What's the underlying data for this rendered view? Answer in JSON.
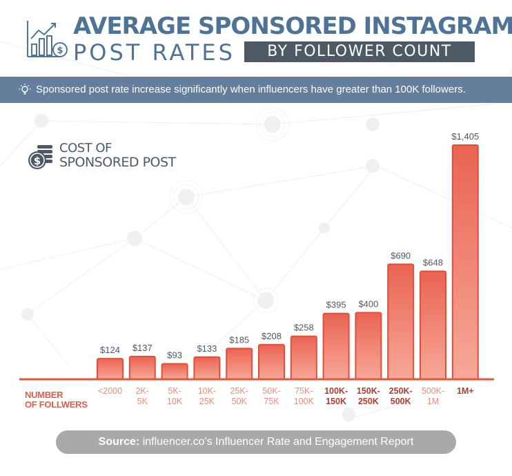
{
  "header": {
    "title_line1": "AVERAGE SPONSORED INSTAGRAM",
    "title_line2": "POST RATES",
    "title_badge": "BY FOLLOWER COUNT"
  },
  "banner": {
    "text": "Sponsored post rate increase significantly when influencers have greater than 100K followers.",
    "icon": "lightbulb-icon"
  },
  "cost_label": {
    "line1": "COST OF",
    "line2": "SPONSORED POST",
    "icon": "coins-dollar-icon"
  },
  "xaxis_title": {
    "line1": "NUMBER",
    "line2": "OF FOLLWERS"
  },
  "source": {
    "label": "Source:",
    "text": " influencer.co's Influencer Rate and Engagement Report"
  },
  "colors": {
    "bar_top": "#ea6351",
    "bar_bottom": "#f7a899",
    "axis": "#e5543f",
    "label_low": "#ee8a76",
    "label_high": "#b03a2c",
    "title": "#4f7396"
  },
  "chart_data": {
    "type": "bar",
    "categories": [
      "<2000",
      "2K-5K",
      "5K-10K",
      "10K-25K",
      "25K-50K",
      "50K-75K",
      "75K-100K",
      "100K-150K",
      "150K-250K",
      "250K-500K",
      "500K-1M",
      "1M+"
    ],
    "category_lines": [
      [
        "<2000"
      ],
      [
        "2K-",
        "5K"
      ],
      [
        "5K-",
        "10K"
      ],
      [
        "10K-",
        "25K"
      ],
      [
        "25K-",
        "50K"
      ],
      [
        "50K-",
        "75K"
      ],
      [
        "75K-",
        "100K"
      ],
      [
        "100K-",
        "150K"
      ],
      [
        "150K-",
        "250K"
      ],
      [
        "250K-",
        "500K"
      ],
      [
        "500K-",
        "1M"
      ],
      [
        "1M+"
      ]
    ],
    "values": [
      124,
      137,
      93,
      133,
      185,
      208,
      258,
      395,
      400,
      690,
      648,
      1405
    ],
    "value_labels": [
      "$124",
      "$137",
      "$93",
      "$133",
      "$185",
      "$208",
      "$258",
      "$395",
      "$400",
      "$690",
      "$648",
      "$1,405"
    ],
    "ylabel": "COST OF SPONSORED POST",
    "xlabel": "NUMBER OF FOLLWERS",
    "ylim": [
      0,
      1405
    ],
    "grid": false,
    "legend": "none"
  }
}
